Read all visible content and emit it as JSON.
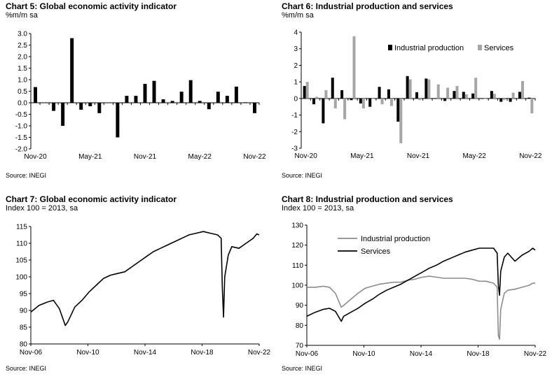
{
  "chart_data": [
    {
      "type": "bar",
      "title": "Chart 5: Global economic activity indicator",
      "subtitle": "%m/m sa",
      "source": "Source: INEGI",
      "xlabel": "",
      "ylabel": "",
      "ylim": [
        -2.0,
        3.0
      ],
      "yticks": [
        "3.0",
        "2.5",
        "2.0",
        "1.5",
        "1.0",
        "0.5",
        "0.0",
        "-0.5",
        "-1.0",
        "-1.5",
        "-2.0"
      ],
      "xtick_labels": [
        "Nov-20",
        "May-21",
        "Nov-21",
        "May-22",
        "Nov-22"
      ],
      "categories": [
        "Nov-20",
        "Dec-20",
        "Jan-21",
        "Feb-21",
        "Mar-21",
        "Apr-21",
        "May-21",
        "Jun-21",
        "Jul-21",
        "Aug-21",
        "Sep-21",
        "Oct-21",
        "Nov-21",
        "Dec-21",
        "Jan-22",
        "Feb-22",
        "Mar-22",
        "Apr-22",
        "May-22",
        "Jun-22",
        "Jul-22",
        "Aug-22",
        "Sep-22",
        "Oct-22",
        "Nov-22"
      ],
      "values": [
        0.68,
        0.0,
        -0.35,
        -1.0,
        2.8,
        -0.3,
        -0.15,
        -0.45,
        0.0,
        -1.5,
        0.3,
        0.3,
        0.82,
        0.95,
        0.15,
        0.08,
        0.48,
        0.98,
        0.08,
        -0.28,
        0.48,
        0.3,
        0.7,
        0.02,
        -0.45
      ],
      "colors": {
        "bar": "#000000"
      }
    },
    {
      "type": "bar",
      "title": "Chart 6: Industrial production and services",
      "subtitle": "%m/m sa",
      "source": "Source: INEGI",
      "xlabel": "",
      "ylabel": "",
      "ylim": [
        -3,
        4
      ],
      "yticks": [
        "4",
        "3",
        "2",
        "1",
        "0",
        "-1",
        "-2",
        "-3"
      ],
      "xtick_labels": [
        "Nov-20",
        "May-21",
        "Nov-21",
        "May-22",
        "Nov-22"
      ],
      "legend_position": "top-right",
      "categories": [
        "Nov-20",
        "Dec-20",
        "Jan-21",
        "Feb-21",
        "Mar-21",
        "Apr-21",
        "May-21",
        "Jun-21",
        "Jul-21",
        "Aug-21",
        "Sep-21",
        "Oct-21",
        "Nov-21",
        "Dec-21",
        "Jan-22",
        "Feb-22",
        "Mar-22",
        "Apr-22",
        "May-22",
        "Jun-22",
        "Jul-22",
        "Aug-22",
        "Sep-22",
        "Oct-22",
        "Nov-22"
      ],
      "series": [
        {
          "name": "Industrial production",
          "color": "#000000",
          "values": [
            0.75,
            -0.35,
            -1.5,
            1.25,
            0.5,
            -0.1,
            -0.3,
            -0.5,
            0.7,
            0.55,
            -1.4,
            1.35,
            0.38,
            1.2,
            0.0,
            -0.15,
            0.45,
            0.4,
            0.3,
            0.0,
            0.45,
            -0.2,
            -0.2,
            0.4,
            0.05
          ]
        },
        {
          "name": "Services",
          "color": "#a6a6a6",
          "values": [
            1.0,
            0.1,
            0.5,
            -0.6,
            -1.25,
            3.75,
            -0.6,
            0.0,
            -0.35,
            -0.45,
            -2.7,
            1.15,
            -0.1,
            1.15,
            0.85,
            0.65,
            0.75,
            0.25,
            1.25,
            0.0,
            0.28,
            -0.1,
            0.35,
            1.05,
            -0.9
          ]
        }
      ]
    },
    {
      "type": "line",
      "title": "Chart 7: Global economic activity indicator",
      "subtitle": "Index 100 = 2013, sa",
      "source": "Source: INEGI",
      "xlabel": "",
      "ylabel": "",
      "ylim": [
        80,
        115
      ],
      "yticks": [
        "115",
        "110",
        "105",
        "100",
        "95",
        "90",
        "85",
        "80"
      ],
      "xlim": [
        "Nov-06",
        "Nov-22"
      ],
      "xtick_labels": [
        "Nov-06",
        "Nov-10",
        "Nov-14",
        "Nov-18",
        "Nov-22"
      ],
      "series": [
        {
          "name": "",
          "color": "#000000",
          "x": [
            "Nov-06",
            "Jun-07",
            "Jan-08",
            "Jun-08",
            "Nov-08",
            "Apr-09",
            "Jun-09",
            "Dec-09",
            "Jun-10",
            "Dec-10",
            "Jun-11",
            "Dec-11",
            "Jun-12",
            "Dec-12",
            "Jun-13",
            "Dec-13",
            "Jun-14",
            "Dec-14",
            "Jun-15",
            "Dec-15",
            "Jun-16",
            "Dec-16",
            "Jun-17",
            "Dec-17",
            "Jun-18",
            "Dec-18",
            "Jun-19",
            "Dec-19",
            "Mar-20",
            "Apr-20",
            "May-20",
            "Jun-20",
            "Sep-20",
            "Dec-20",
            "Jun-21",
            "Dec-21",
            "Jun-22",
            "Sep-22",
            "Nov-22"
          ],
          "y": [
            89.5,
            91.5,
            92.5,
            93.0,
            90.5,
            85.5,
            86.5,
            91.0,
            93.0,
            95.5,
            97.5,
            99.5,
            100.5,
            101.0,
            101.5,
            103.0,
            104.5,
            106.0,
            107.5,
            108.5,
            109.5,
            110.5,
            111.5,
            112.5,
            113.0,
            113.5,
            113.0,
            112.5,
            111.5,
            96.5,
            88.0,
            100.0,
            106.5,
            109.0,
            108.5,
            110.0,
            111.5,
            112.8,
            112.5
          ]
        }
      ]
    },
    {
      "type": "line",
      "title": "Chart 8: Industrial production and services",
      "subtitle": "Index 100 = 2013, sa",
      "source": "Source: INEGI",
      "xlabel": "",
      "ylabel": "",
      "ylim": [
        70,
        130
      ],
      "yticks": [
        "130",
        "120",
        "110",
        "100",
        "90",
        "80",
        "70"
      ],
      "xlim": [
        "Nov-06",
        "Nov-22"
      ],
      "xtick_labels": [
        "Nov-06",
        "Nov-10",
        "Nov-14",
        "Nov-18",
        "Nov-22"
      ],
      "legend_position": "top-left",
      "series": [
        {
          "name": "Industrial production",
          "color": "#8c8c8c",
          "x": [
            "Nov-06",
            "Jun-07",
            "Jan-08",
            "Jun-08",
            "Nov-08",
            "Apr-09",
            "Jun-09",
            "Dec-09",
            "Jun-10",
            "Dec-10",
            "Jun-11",
            "Dec-11",
            "Jun-12",
            "Dec-12",
            "Jun-13",
            "Dec-13",
            "Jun-14",
            "Dec-14",
            "Jun-15",
            "Dec-15",
            "Jun-16",
            "Dec-16",
            "Jun-17",
            "Dec-17",
            "Jun-18",
            "Dec-18",
            "Jun-19",
            "Dec-19",
            "Mar-20",
            "Apr-20",
            "May-20",
            "Jun-20",
            "Sep-20",
            "Dec-20",
            "Jun-21",
            "Dec-21",
            "Jun-22",
            "Sep-22",
            "Nov-22"
          ],
          "y": [
            99.0,
            99.0,
            99.5,
            99.0,
            96.0,
            89.0,
            90.0,
            93.0,
            96.0,
            98.5,
            99.5,
            100.5,
            101.0,
            101.5,
            101.5,
            102.5,
            103.0,
            104.0,
            104.5,
            104.0,
            103.5,
            103.5,
            103.5,
            103.5,
            103.0,
            102.0,
            102.0,
            101.0,
            99.0,
            75.0,
            73.0,
            88.0,
            96.0,
            97.5,
            98.0,
            99.0,
            100.0,
            101.0,
            101.0
          ]
        },
        {
          "name": "Services",
          "color": "#000000",
          "x": [
            "Nov-06",
            "Jun-07",
            "Jan-08",
            "Jun-08",
            "Nov-08",
            "Apr-09",
            "Jun-09",
            "Dec-09",
            "Jun-10",
            "Dec-10",
            "Jun-11",
            "Dec-11",
            "Jun-12",
            "Dec-12",
            "Jun-13",
            "Dec-13",
            "Jun-14",
            "Dec-14",
            "Jun-15",
            "Dec-15",
            "Jun-16",
            "Dec-16",
            "Jun-17",
            "Dec-17",
            "Jun-18",
            "Dec-18",
            "Jun-19",
            "Dec-19",
            "Mar-20",
            "Apr-20",
            "May-20",
            "Jun-20",
            "Sep-20",
            "Dec-20",
            "Jun-21",
            "Dec-21",
            "Jun-22",
            "Sep-22",
            "Nov-22"
          ],
          "y": [
            84.5,
            86.5,
            88.0,
            88.5,
            87.0,
            82.0,
            84.5,
            86.5,
            88.5,
            91.0,
            93.0,
            95.5,
            97.5,
            99.0,
            100.5,
            102.5,
            104.5,
            106.5,
            108.5,
            110.0,
            112.0,
            113.5,
            115.0,
            116.5,
            117.5,
            118.5,
            118.5,
            118.5,
            116.0,
            100.0,
            95.0,
            107.0,
            114.0,
            116.0,
            112.0,
            115.0,
            117.0,
            118.5,
            117.5
          ]
        }
      ]
    }
  ]
}
